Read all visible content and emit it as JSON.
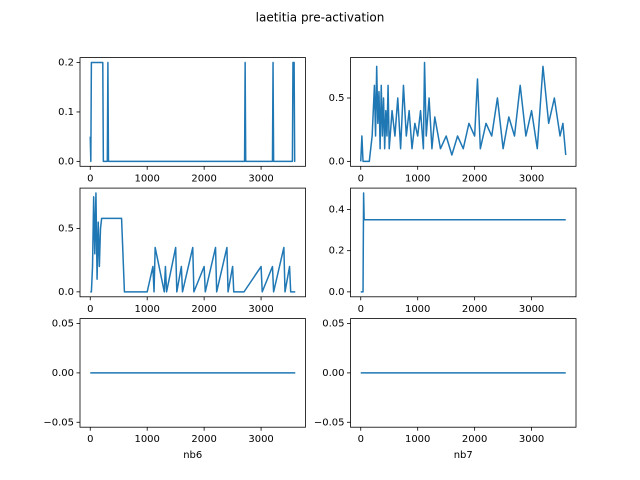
{
  "title": "laetitia pre-activation",
  "chart_data": [
    {
      "type": "line",
      "color": "#1f77b4",
      "x": [
        0,
        10,
        20,
        30,
        220,
        230,
        300,
        310,
        320,
        2710,
        2720,
        2730,
        3200,
        3210,
        3220,
        3550,
        3560,
        3580,
        3590,
        3600
      ],
      "values": [
        0.05,
        0,
        0.2,
        0.2,
        0.2,
        0,
        0,
        0.2,
        0,
        0,
        0.2,
        0,
        0,
        0.2,
        0,
        0,
        0.2,
        0.2,
        0,
        0
      ],
      "xlim": [
        -180,
        3780
      ],
      "xticks": [
        0,
        1000,
        2000,
        3000
      ],
      "ylim": [
        -0.01,
        0.21
      ],
      "yticks": [
        {
          "value": 0,
          "label": "0.0"
        },
        0.1,
        0.2
      ]
    },
    {
      "type": "line",
      "color": "#1f77b4",
      "x": [
        0,
        20,
        40,
        60,
        80,
        100,
        150,
        200,
        220,
        240,
        260,
        280,
        300,
        320,
        340,
        360,
        380,
        400,
        420,
        440,
        460,
        480,
        500,
        550,
        600,
        650,
        700,
        750,
        800,
        850,
        900,
        950,
        1000,
        1050,
        1100,
        1120,
        1150,
        1200,
        1250,
        1300,
        1400,
        1500,
        1600,
        1700,
        1800,
        1900,
        2000,
        2050,
        2100,
        2200,
        2300,
        2400,
        2500,
        2600,
        2700,
        2800,
        2900,
        3000,
        3100,
        3200,
        3300,
        3400,
        3500,
        3550,
        3600
      ],
      "values": [
        0,
        0.2,
        0,
        0,
        0,
        0,
        0,
        0.2,
        0.4,
        0.6,
        0.2,
        0.75,
        0.3,
        0.55,
        0.1,
        0.6,
        0.2,
        0.5,
        0.1,
        0.4,
        0.2,
        0.6,
        0.1,
        0.4,
        0.2,
        0.5,
        0.1,
        0.6,
        0.2,
        0.4,
        0.1,
        0.3,
        0.2,
        0.4,
        0.1,
        0.78,
        0.2,
        0.5,
        0.1,
        0.35,
        0.1,
        0.2,
        0.05,
        0.2,
        0.1,
        0.3,
        0.2,
        0.65,
        0.1,
        0.3,
        0.2,
        0.5,
        0.1,
        0.35,
        0.2,
        0.6,
        0.2,
        0.4,
        0.1,
        0.75,
        0.3,
        0.5,
        0.2,
        0.3,
        0.05
      ],
      "xlim": [
        -180,
        3780
      ],
      "xticks": [
        0,
        1000,
        2000,
        3000
      ],
      "ylim": [
        -0.039,
        0.819
      ],
      "yticks": [
        {
          "value": 0,
          "label": "0.0"
        },
        0.5
      ]
    },
    {
      "type": "line",
      "color": "#1f77b4",
      "x": [
        0,
        20,
        40,
        60,
        80,
        100,
        120,
        140,
        160,
        180,
        200,
        300,
        500,
        550,
        600,
        1000,
        1100,
        1120,
        1140,
        1300,
        1320,
        1340,
        1500,
        1520,
        1600,
        1620,
        1800,
        1820,
        2000,
        2020,
        2200,
        2220,
        2400,
        2420,
        2500,
        2520,
        2700,
        3000,
        3020,
        3200,
        3220,
        3400,
        3420,
        3500,
        3520,
        3600
      ],
      "values": [
        0,
        0,
        0.2,
        0.75,
        0.3,
        0.78,
        0.1,
        0.55,
        0.2,
        0.5,
        0.58,
        0.58,
        0.58,
        0.58,
        0,
        0,
        0.2,
        0,
        0.35,
        0,
        0.2,
        0,
        0.35,
        0,
        0.2,
        0,
        0.35,
        0,
        0.2,
        0,
        0.35,
        0,
        0.35,
        0,
        0.2,
        0,
        0,
        0.2,
        0,
        0.2,
        0,
        0.35,
        0,
        0.2,
        0,
        0
      ],
      "xlim": [
        -180,
        3780
      ],
      "xticks": [
        0,
        1000,
        2000,
        3000
      ],
      "ylim": [
        -0.039,
        0.819
      ],
      "yticks": [
        {
          "value": 0,
          "label": "0.0"
        },
        0.5
      ]
    },
    {
      "type": "line",
      "color": "#1f77b4",
      "x": [
        0,
        40,
        50,
        60,
        70,
        3600
      ],
      "values": [
        0,
        0,
        0.48,
        0.35,
        0.35,
        0.35
      ],
      "xlim": [
        -180,
        3780
      ],
      "xticks": [
        0,
        1000,
        2000,
        3000
      ],
      "ylim": [
        -0.024,
        0.504
      ],
      "yticks": [
        {
          "value": 0,
          "label": "0.0"
        },
        0.2,
        0.4
      ]
    },
    {
      "type": "line",
      "color": "#1f77b4",
      "xlabel": "nb6",
      "x": [
        0,
        3600
      ],
      "values": [
        0,
        0
      ],
      "xlim": [
        -180,
        3780
      ],
      "xticks": [
        0,
        1000,
        2000,
        3000
      ],
      "ylim": [
        -0.055,
        0.055
      ],
      "yticks": [
        {
          "value": -0.05,
          "label": "−0.05"
        },
        {
          "value": 0,
          "label": "0.00"
        },
        0.05
      ]
    },
    {
      "type": "line",
      "color": "#1f77b4",
      "xlabel": "nb7",
      "x": [
        0,
        3600
      ],
      "values": [
        0,
        0
      ],
      "xlim": [
        -180,
        3780
      ],
      "xticks": [
        0,
        1000,
        2000,
        3000
      ],
      "ylim": [
        -0.055,
        0.055
      ],
      "yticks": [
        {
          "value": -0.05,
          "label": "−0.05"
        },
        {
          "value": 0,
          "label": "0.00"
        },
        0.05
      ]
    }
  ]
}
